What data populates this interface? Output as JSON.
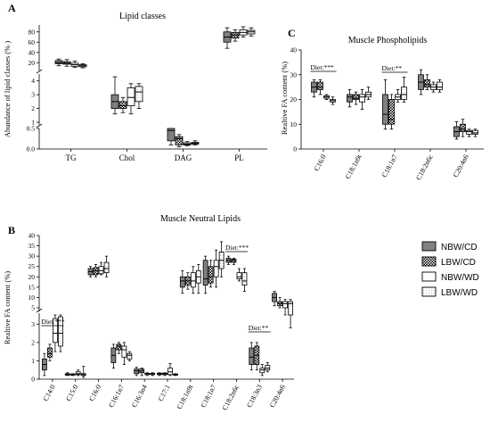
{
  "chart_data": [
    {
      "panel": "A",
      "type": "box",
      "title": "Lipid classes",
      "ylabel": "Abundance of lipid classes (% )",
      "categories": [
        "TG",
        "Chol",
        "DAG",
        "PL"
      ],
      "series_order": [
        "NBW/CD",
        "LBW/CD",
        "NBW/WD",
        "LBW/WD"
      ],
      "y_segments": [
        {
          "range": [
            0,
            0.5
          ],
          "ticks": [
            "0.0",
            "0.5"
          ]
        },
        {
          "range": [
            1,
            4.5
          ],
          "ticks": [
            "1",
            "2",
            "3",
            "4"
          ]
        },
        {
          "range": [
            10,
            90
          ],
          "ticks": [
            "20",
            "40",
            "60",
            "80"
          ]
        }
      ],
      "boxes": [
        [
          [
            14,
            18,
            20,
            24,
            27
          ],
          [
            13,
            17,
            19,
            22,
            26
          ],
          [
            11,
            13,
            16,
            19,
            23
          ],
          [
            10,
            12,
            14,
            16,
            18
          ]
        ],
        [
          [
            1.6,
            2.0,
            2.5,
            3.0,
            4.3
          ],
          [
            1.7,
            2.0,
            2.2,
            2.5,
            2.8
          ],
          [
            1.6,
            2.2,
            2.8,
            3.5,
            3.8
          ],
          [
            2.0,
            2.5,
            3.2,
            3.6,
            3.8
          ]
        ],
        [
          [
            0.1,
            0.2,
            0.45,
            0.6,
            0.75
          ],
          [
            0.05,
            0.1,
            0.25,
            0.3,
            0.35
          ],
          [
            0.08,
            0.1,
            0.12,
            0.15,
            0.18
          ],
          [
            0.1,
            0.12,
            0.14,
            0.16,
            0.2
          ]
        ],
        [
          [
            48,
            60,
            70,
            80,
            88
          ],
          [
            62,
            68,
            74,
            79,
            84
          ],
          [
            70,
            74,
            79,
            84,
            90
          ],
          [
            72,
            76,
            80,
            83,
            88
          ]
        ]
      ]
    },
    {
      "panel": "C",
      "type": "box",
      "title": "Muscle Phospholipids",
      "ylabel": "Realtive FA content (%)",
      "categories": [
        "C16:0",
        "C18:1n9t",
        "C18:1n7",
        "C18:2n6c",
        "C20:4n6"
      ],
      "series_order": [
        "NBW/CD",
        "LBW/CD",
        "NBW/WD",
        "LBW/WD"
      ],
      "ylim": [
        0,
        40
      ],
      "yticks": [
        "0",
        "10",
        "20",
        "30",
        "40"
      ],
      "boxes": [
        [
          [
            21,
            23,
            25,
            27,
            28
          ],
          [
            22,
            24,
            25,
            27,
            28
          ],
          [
            20,
            20.5,
            21,
            21.5,
            22
          ],
          [
            18,
            19,
            19.5,
            20,
            21
          ]
        ],
        [
          [
            17,
            19,
            21,
            22,
            24
          ],
          [
            18,
            20,
            20.5,
            22,
            23
          ],
          [
            16,
            19,
            21,
            22,
            24
          ],
          [
            20,
            21,
            22,
            23,
            25
          ]
        ],
        [
          [
            8,
            10,
            14,
            22,
            28
          ],
          [
            8,
            10,
            12,
            20,
            22
          ],
          [
            19,
            20,
            21,
            22,
            24
          ],
          [
            19,
            20,
            22,
            25,
            29
          ]
        ],
        [
          [
            22,
            24,
            27,
            30,
            32
          ],
          [
            24,
            25,
            26,
            28,
            30
          ],
          [
            23,
            24,
            25,
            26,
            27
          ],
          [
            23,
            24,
            25,
            27,
            28
          ]
        ],
        [
          [
            4,
            5,
            7,
            9,
            11
          ],
          [
            5,
            7,
            8,
            10,
            12
          ],
          [
            5,
            6,
            7,
            7.5,
            8
          ],
          [
            5,
            6,
            6.5,
            7.5,
            8
          ]
        ]
      ],
      "annotations": [
        {
          "text": "Diet:***",
          "category": 0
        },
        {
          "text": "Diet:**",
          "category": 2
        }
      ]
    },
    {
      "panel": "B",
      "type": "box",
      "title": "Muscle Neutral Lipids",
      "ylabel": "Realtive FA content (%)",
      "categories": [
        "C14:0",
        "C15:0",
        "C16:0",
        "C16:1n7",
        "C16:3n4",
        "C17:1",
        "C18:1n9t",
        "C18:1n7",
        "C18:2n6c",
        "C18:3n3",
        "C20:4n6"
      ],
      "series_order": [
        "NBW/CD",
        "LBW/CD",
        "NBW/WD",
        "LBW/WD"
      ],
      "y_segments": [
        {
          "range": [
            0,
            3.5
          ],
          "ticks": [
            "0",
            "1",
            "2",
            "3"
          ]
        },
        {
          "range": [
            5,
            40
          ],
          "ticks": [
            "5",
            "10",
            "15",
            "20",
            "25",
            "30",
            "35",
            "40"
          ]
        }
      ],
      "boxes": [
        [
          [
            0.2,
            0.5,
            0.8,
            1.1,
            1.4
          ],
          [
            1.0,
            1.2,
            1.4,
            1.7,
            1.9
          ],
          [
            1.5,
            2.0,
            2.5,
            3.3,
            3.5
          ],
          [
            1.5,
            1.8,
            2.5,
            3.4,
            3.5
          ]
        ],
        [
          [
            0.2,
            0.22,
            0.25,
            0.3,
            0.35
          ],
          [
            0.2,
            0.22,
            0.25,
            0.28,
            0.3
          ],
          [
            0.2,
            0.25,
            0.3,
            0.4,
            0.5
          ],
          [
            0.1,
            0.2,
            0.25,
            0.3,
            0.7
          ]
        ],
        [
          [
            20,
            21,
            22.5,
            24,
            25
          ],
          [
            20,
            21,
            23,
            24.5,
            26
          ],
          [
            21,
            21.5,
            23,
            25,
            27
          ],
          [
            20,
            22,
            24,
            27,
            30
          ]
        ],
        [
          [
            0.6,
            0.9,
            1.3,
            1.7,
            1.9
          ],
          [
            1.4,
            1.6,
            1.8,
            1.9,
            2.0
          ],
          [
            0.8,
            1.2,
            1.6,
            1.8,
            2.0
          ],
          [
            1.0,
            1.1,
            1.3,
            1.4,
            1.5
          ]
        ],
        [
          [
            0.2,
            0.3,
            0.45,
            0.55,
            0.65
          ],
          [
            0.2,
            0.35,
            0.45,
            0.55,
            0.6
          ],
          [
            0.2,
            0.25,
            0.3,
            0.32,
            0.35
          ],
          [
            0.2,
            0.25,
            0.3,
            0.32,
            0.35
          ]
        ],
        [
          [
            0.2,
            0.25,
            0.3,
            0.33,
            0.35
          ],
          [
            0.2,
            0.25,
            0.3,
            0.33,
            0.35
          ],
          [
            0.2,
            0.25,
            0.4,
            0.6,
            0.85
          ],
          [
            0.2,
            0.22,
            0.25,
            0.28,
            0.3
          ]
        ],
        [
          [
            12,
            15,
            18,
            20,
            23
          ],
          [
            14,
            16,
            18,
            20,
            22
          ],
          [
            12,
            15,
            18,
            22,
            25
          ],
          [
            12,
            17,
            20,
            23,
            26
          ]
        ],
        [
          [
            12,
            16,
            19,
            28,
            30
          ],
          [
            15,
            17,
            20,
            25,
            28
          ],
          [
            15,
            20,
            25,
            28,
            33
          ],
          [
            20,
            24,
            28,
            32,
            37
          ]
        ],
        [
          [
            26,
            27,
            28,
            29,
            30
          ],
          [
            26,
            27,
            28,
            28.5,
            29
          ],
          [
            18,
            19,
            20,
            22,
            24
          ],
          [
            13,
            16,
            18,
            22,
            24
          ]
        ],
        [
          [
            0.5,
            0.8,
            1.2,
            1.7,
            2.0
          ],
          [
            0.5,
            0.8,
            1.3,
            1.8,
            2.0
          ],
          [
            0.2,
            0.35,
            0.5,
            0.6,
            0.8
          ],
          [
            0.4,
            0.5,
            0.6,
            0.75,
            0.9
          ]
        ],
        [
          [
            6,
            8,
            10,
            12,
            13
          ],
          [
            5,
            6,
            7,
            8,
            10
          ],
          [
            3.6,
            5,
            7,
            8,
            9
          ],
          [
            2.8,
            4.5,
            7,
            8,
            9
          ]
        ]
      ],
      "annotations": [
        {
          "text": "Diet:***",
          "category": 0
        },
        {
          "text": "Diet:***",
          "category": 8
        },
        {
          "text": "Diet:**",
          "category": 9
        }
      ]
    }
  ],
  "legend": {
    "position": "right",
    "items": [
      {
        "label": "NBW/CD",
        "fill": "gray"
      },
      {
        "label": "LBW/CD",
        "fill": "checker"
      },
      {
        "label": "NBW/WD",
        "fill": "white"
      },
      {
        "label": "LBW/WD",
        "fill": "dots"
      }
    ]
  },
  "colors": {
    "dark_fill": "#808080",
    "line": "#000000"
  }
}
